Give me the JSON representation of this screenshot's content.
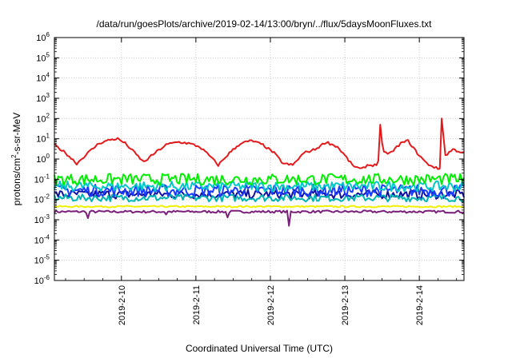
{
  "chart_data": {
    "type": "line",
    "title": "/data/run/goesPlots/archive/2019-02-14/13:00/bryn/../flux/5daysMoonFluxes.txt",
    "xlabel": "Coordinated Universal Time (UTC)",
    "ylabel": {
      "pre": "protons/cm",
      "sup": "2",
      "post": "-s-sr-MeV"
    },
    "yscale": "log",
    "ylim_exp": [
      -6,
      6
    ],
    "xlim_day": [
      9.1,
      14.6
    ],
    "grid": true,
    "legend": "none",
    "x_ticks": [
      {
        "label": "2019-2-10",
        "day": 10
      },
      {
        "label": "2019-2-11",
        "day": 11
      },
      {
        "label": "2019-2-12",
        "day": 12
      },
      {
        "label": "2019-2-13",
        "day": 13
      },
      {
        "label": "2019-2-14",
        "day": 14
      }
    ],
    "y_ticks": [
      {
        "base": "10",
        "exp": "6",
        "value": 6
      },
      {
        "base": "10",
        "exp": "5",
        "value": 5
      },
      {
        "base": "10",
        "exp": "4",
        "value": 4
      },
      {
        "base": "10",
        "exp": "3",
        "value": 3
      },
      {
        "base": "10",
        "exp": "2",
        "value": 2
      },
      {
        "base": "10",
        "exp": "1",
        "value": 1
      },
      {
        "base": "10",
        "exp": "0",
        "value": 0
      },
      {
        "base": "10",
        "exp": "-1",
        "value": -1
      },
      {
        "base": "10",
        "exp": "-2",
        "value": -2
      },
      {
        "base": "10",
        "exp": "-3",
        "value": -3
      },
      {
        "base": "10",
        "exp": "-4",
        "value": -4
      },
      {
        "base": "10",
        "exp": "-5",
        "value": -5
      },
      {
        "base": "10",
        "exp": "-6",
        "value": -6
      }
    ],
    "series": [
      {
        "color": "#e31a1c",
        "base_points": [
          [
            9.1,
            5
          ],
          [
            9.25,
            2
          ],
          [
            9.4,
            0.6
          ],
          [
            9.55,
            2
          ],
          [
            9.7,
            6
          ],
          [
            9.85,
            9
          ],
          [
            9.95,
            10
          ],
          [
            10.05,
            6
          ],
          [
            10.18,
            2
          ],
          [
            10.3,
            0.7
          ],
          [
            10.45,
            2
          ],
          [
            10.6,
            5
          ],
          [
            10.75,
            7
          ],
          [
            10.9,
            6
          ],
          [
            11.05,
            4
          ],
          [
            11.18,
            1.5
          ],
          [
            11.3,
            0.5
          ],
          [
            11.45,
            2
          ],
          [
            11.6,
            6
          ],
          [
            11.75,
            8
          ],
          [
            11.9,
            5
          ],
          [
            12.05,
            2
          ],
          [
            12.17,
            0.6
          ],
          [
            12.3,
            0.5
          ],
          [
            12.45,
            2
          ],
          [
            12.6,
            3
          ],
          [
            12.75,
            7
          ],
          [
            12.9,
            4
          ],
          [
            13.0,
            1.5
          ],
          [
            13.1,
            0.5
          ],
          [
            13.22,
            0.3
          ],
          [
            13.3,
            0.5
          ],
          [
            13.42,
            0.5
          ],
          [
            13.5,
            2
          ],
          [
            13.62,
            2
          ],
          [
            13.75,
            6
          ],
          [
            13.85,
            8
          ],
          [
            13.97,
            2
          ],
          [
            14.1,
            0.6
          ],
          [
            14.27,
            0.3
          ],
          [
            14.35,
            1.5
          ],
          [
            14.45,
            3
          ],
          [
            14.6,
            2
          ]
        ],
        "spikes": [
          {
            "day": 13.48,
            "value": 50
          },
          {
            "day": 14.3,
            "value": 100
          }
        ]
      },
      {
        "color": "#00ee00",
        "level": 0.1,
        "noise": 0.28
      },
      {
        "color": "#00c8c8",
        "level": 0.045,
        "noise": 0.25
      },
      {
        "color": "#1a3cff",
        "level": 0.028,
        "noise": 0.3
      },
      {
        "color": "#00b4b4",
        "level": 0.012,
        "noise": 0.18
      },
      {
        "color": "#1010a0",
        "level": 0.018,
        "noise": 0.22
      },
      {
        "color": "#f0f000",
        "level": 0.0045,
        "noise": 0.04
      },
      {
        "color": "#7a1f7a",
        "level": 0.0025,
        "noise": 0.06,
        "dips": [
          {
            "day": 9.54,
            "value": 0.0012
          },
          {
            "day": 11.42,
            "value": 0.0013
          },
          {
            "day": 12.24,
            "value": 0.0005
          },
          {
            "day": 10.6,
            "value": 0.0018
          }
        ]
      }
    ]
  }
}
